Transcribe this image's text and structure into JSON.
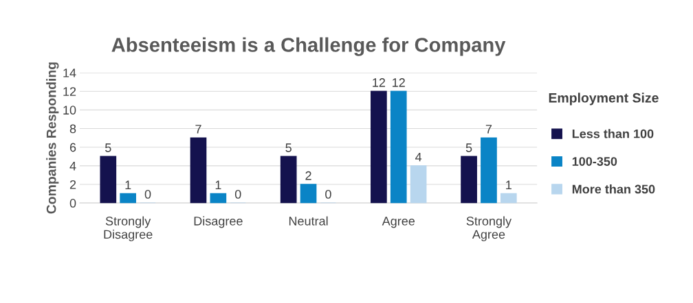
{
  "chart_data": {
    "type": "bar",
    "title": "Absenteeism is a Challenge for Company",
    "ylabel": "Companies Responding",
    "legend_title": "Employment Size",
    "categories": [
      "Strongly\nDisagree",
      "Disagree",
      "Neutral",
      "Agree",
      "Strongly\nAgree"
    ],
    "series": [
      {
        "name": "Less than 100",
        "color": "#14124e",
        "values": [
          5,
          7,
          5,
          12,
          5
        ]
      },
      {
        "name": "100-350",
        "color": "#0a84c6",
        "values": [
          1,
          1,
          2,
          12,
          7
        ]
      },
      {
        "name": "More than 350",
        "color": "#b8d6ee",
        "values": [
          0,
          0,
          0,
          4,
          1
        ]
      }
    ],
    "ylim": [
      0,
      14
    ],
    "yticks": [
      0,
      2,
      4,
      6,
      8,
      10,
      12,
      14
    ],
    "grid": "y",
    "legend": "right",
    "data_labels": true
  }
}
